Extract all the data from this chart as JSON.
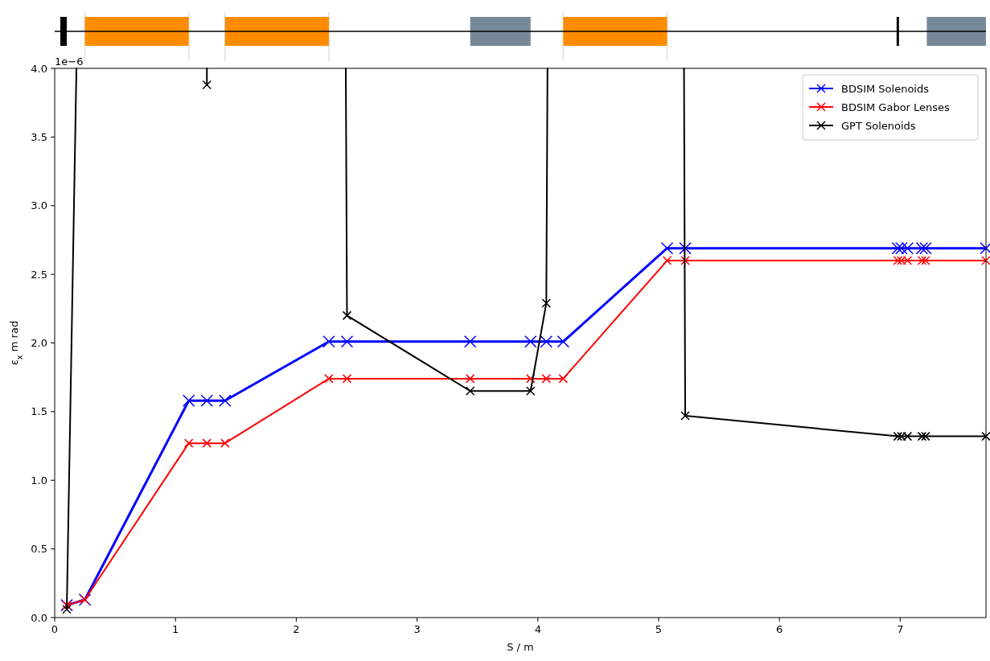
{
  "chart_data": {
    "type": "line",
    "xlabel": "S / m",
    "ylabel": "ε$_{x}$ m rad",
    "annotations": [
      "1e−6"
    ],
    "xlim": [
      0,
      7.71
    ],
    "ylim": [
      0,
      4.0
    ],
    "xticks": [
      0,
      1,
      2,
      3,
      4,
      5,
      6,
      7
    ],
    "yticks": [
      {
        "value": 0,
        "label": "0.0"
      },
      {
        "value": 0.5,
        "label": "0.5"
      },
      {
        "value": 1,
        "label": "1.0"
      },
      {
        "value": 1.5,
        "label": "1.5"
      },
      {
        "value": 2,
        "label": "2.0"
      },
      {
        "value": 2.5,
        "label": "2.5"
      },
      {
        "value": 3,
        "label": "3.0"
      },
      {
        "value": 3.5,
        "label": "3.5"
      },
      {
        "value": 4,
        "label": "4.0"
      }
    ],
    "grid": false,
    "legend": "top right",
    "marker": "cross",
    "line_style": "solid",
    "series": [
      {
        "name": "BDSIM Solenoids",
        "color": "#0000ff",
        "x": [
          0.1,
          0.25,
          1.11,
          1.26,
          1.41,
          2.27,
          2.42,
          3.44,
          3.94,
          4.07,
          4.21,
          5.07,
          5.22,
          6.98,
          7.01,
          7.06,
          7.18,
          7.21,
          7.71
        ],
        "values": [
          0.09,
          0.13,
          1.58,
          1.58,
          1.58,
          2.01,
          2.01,
          2.01,
          2.01,
          2.01,
          2.01,
          2.69,
          2.69,
          2.69,
          2.69,
          2.69,
          2.69,
          2.69,
          2.69
        ]
      },
      {
        "name": "BDSIM Gabor Lenses",
        "color": "#ff0000",
        "x": [
          0.1,
          0.25,
          1.11,
          1.26,
          1.41,
          2.27,
          2.42,
          3.44,
          3.94,
          4.07,
          4.21,
          5.07,
          5.22,
          6.98,
          7.01,
          7.06,
          7.18,
          7.21,
          7.71
        ],
        "values": [
          0.09,
          0.13,
          1.27,
          1.27,
          1.27,
          1.74,
          1.74,
          1.74,
          1.74,
          1.74,
          1.74,
          2.6,
          2.6,
          2.6,
          2.6,
          2.6,
          2.6,
          2.6,
          2.6
        ]
      },
      {
        "name": "GPT Solenoids",
        "color": "#000000",
        "x": [
          0.1,
          0.18,
          1.26,
          1.3,
          2.42,
          3.44,
          3.94,
          4.07,
          4.1,
          5.22,
          6.98,
          7.01,
          7.06,
          7.18,
          7.21,
          7.71
        ],
        "values": [
          0.06,
          null,
          3.88,
          null,
          2.2,
          1.65,
          1.65,
          2.29,
          null,
          1.47,
          1.32,
          1.32,
          1.32,
          1.32,
          1.32,
          1.32
        ]
      },
      {
        "color": "#000000",
        "marker": "none",
        "x": [
          0.1,
          0.18,
          0.2,
          1.26,
          1.26,
          1.3,
          2.41,
          2.42,
          3.0,
          4.07,
          4.08,
          4.1,
          5.21,
          5.22
        ],
        "values": [
          0.06,
          4.0,
          null,
          4.0,
          3.88,
          null,
          4.0,
          2.2,
          null,
          2.29,
          4.0,
          null,
          4.0,
          1.47
        ]
      }
    ]
  }
}
